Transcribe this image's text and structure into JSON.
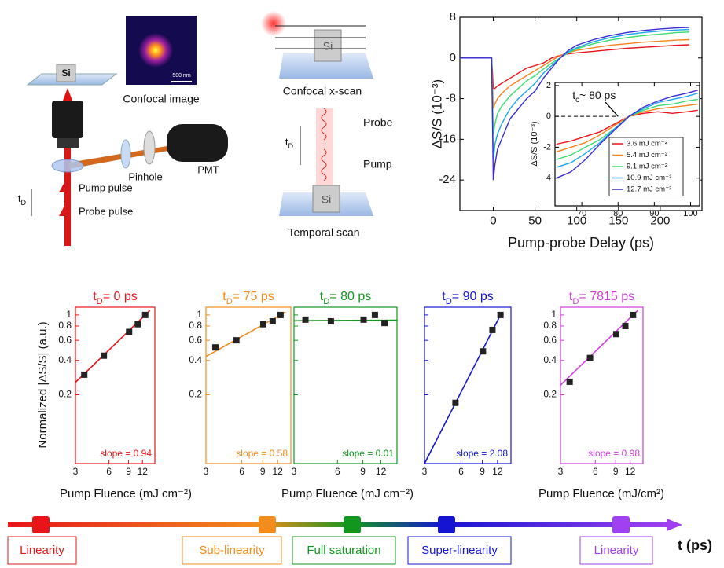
{
  "diagram": {
    "setup": {
      "si": "Si",
      "confocal_image": "Confocal image",
      "scale_bar": "500 nm",
      "pinhole": "Pinhole",
      "pmt": "PMT",
      "pump_pulse": "Pump pulse",
      "probe_pulse": "Probe pulse",
      "delay": {
        "t": "t",
        "sub": "D"
      }
    },
    "scans": {
      "si_top": "Si",
      "x_scan": "Confocal x-scan",
      "probe": "Probe",
      "pump": "Pump",
      "delay": {
        "t": "t",
        "sub": "D"
      },
      "si_bottom": "Si",
      "temporal_scan": "Temporal scan"
    }
  },
  "chart_data": [
    {
      "type": "line",
      "xlabel": "Pump-probe Delay (ps)",
      "ylabel": "ΔS/S (10⁻³)",
      "xlim": [
        -40,
        250
      ],
      "ylim": [
        -30,
        8
      ],
      "xticks": [
        0,
        50,
        100,
        150,
        200
      ],
      "yticks": [
        -24,
        -16,
        -8,
        0,
        8
      ],
      "x": [
        -40,
        -20,
        -2,
        0,
        2,
        5,
        10,
        20,
        30,
        40,
        50,
        60,
        70,
        80,
        90,
        100,
        120,
        140,
        160,
        180,
        200,
        220,
        235
      ],
      "series": [
        {
          "color": "#e8141a",
          "values": [
            0,
            0,
            0,
            -6,
            -6,
            -5.5,
            -5,
            -4,
            -3,
            -2,
            -1.5,
            -1,
            0,
            0.5,
            0.8,
            1,
            1.3,
            1.6,
            1.9,
            2.1,
            2.3,
            2.5,
            2.6
          ]
        },
        {
          "color": "#f5821f",
          "values": [
            0,
            0,
            0,
            -10,
            -9,
            -8,
            -7,
            -5.5,
            -4.5,
            -3.5,
            -2.5,
            -1.5,
            -0.5,
            0.5,
            1,
            1.5,
            2,
            2.5,
            2.8,
            3.1,
            3.3,
            3.5,
            3.6
          ]
        },
        {
          "color": "#3ddc6e",
          "values": [
            0,
            0,
            0,
            -15,
            -13,
            -11,
            -9.5,
            -7.5,
            -6,
            -4.5,
            -3.5,
            -2.2,
            -1,
            0,
            1,
            1.8,
            2.8,
            3.5,
            4,
            4.4,
            4.7,
            5,
            5.1
          ]
        },
        {
          "color": "#1ea7e8",
          "values": [
            0,
            0,
            0,
            -20,
            -17,
            -15,
            -13,
            -10,
            -8,
            -6.5,
            -5,
            -3,
            -1.5,
            0,
            1.2,
            2,
            3.2,
            4,
            4.6,
            5,
            5.3,
            5.5,
            5.6
          ]
        },
        {
          "color": "#3b2bd6",
          "values": [
            0,
            0,
            0,
            -24,
            -21,
            -18,
            -16,
            -12,
            -10,
            -8,
            -6.5,
            -4,
            -2,
            0,
            1.5,
            2.5,
            3.6,
            4.4,
            5,
            5.4,
            5.7,
            5.9,
            6
          ]
        }
      ]
    },
    {
      "type": "line",
      "ylabel": "ΔS/S (10⁻³)",
      "xlim": [
        62.6,
        102.5
      ],
      "ylim": [
        -5.8,
        2.2
      ],
      "xticks": [
        70,
        80,
        90,
        100
      ],
      "yticks": [
        -4,
        -2,
        0,
        2
      ],
      "x": [
        63,
        67,
        71,
        75,
        79,
        83,
        87,
        91,
        95,
        99,
        102
      ],
      "dashed_line": {
        "x": [
          62.6,
          80
        ],
        "y": [
          0,
          0
        ]
      },
      "annotation": {
        "t": "t",
        "sub": "c",
        "rest": "~ 80 ps",
        "x": 80,
        "y": 0
      },
      "series": [
        {
          "name": "3.6 mJ cm⁻²",
          "color": "#e8141a",
          "values": [
            -1.8,
            -1.6,
            -1.3,
            -1,
            -0.5,
            0,
            0.2,
            0.3,
            0.2,
            0.3,
            0.4
          ]
        },
        {
          "name": "5.4 mJ cm⁻²",
          "color": "#f5821f",
          "values": [
            -2.3,
            -2,
            -1.7,
            -1.2,
            -0.6,
            0,
            0.3,
            0.5,
            0.6,
            0.7,
            0.8
          ]
        },
        {
          "name": "9.1 mJ cm⁻²",
          "color": "#3ddc6e",
          "values": [
            -2.8,
            -2.5,
            -2,
            -1.5,
            -0.8,
            0,
            0.4,
            0.7,
            0.8,
            1,
            1.1
          ]
        },
        {
          "name": "10.9 mJ cm⁻²",
          "color": "#1ea7e8",
          "values": [
            -3.3,
            -3,
            -2.4,
            -1.7,
            -0.8,
            0,
            0.5,
            0.9,
            1.1,
            1.3,
            1.5
          ]
        },
        {
          "name": "12.7 mJ cm⁻²",
          "color": "#3b2bd6",
          "values": [
            -4,
            -3.6,
            -2.8,
            -1.8,
            -0.9,
            0,
            0.6,
            1,
            1.3,
            1.5,
            1.7
          ]
        }
      ]
    },
    {
      "type": "scatter",
      "title": {
        "t": "t",
        "sub": "D",
        "rest": "= 0 ps"
      },
      "ylabel": "Normalized |ΔS/S| (a.u.)",
      "xlabel": "Pump Fluence (mJ cm⁻²)",
      "color": "#e8141a",
      "log_x": true,
      "log_y": true,
      "show_ytick_labels": true,
      "xlim": [
        3,
        15.5
      ],
      "ylim": [
        0.05,
        1.17
      ],
      "xticks": [
        3,
        6,
        9,
        12
      ],
      "yticks": [
        0.2,
        0.4,
        0.6,
        0.8,
        1
      ],
      "x": [
        3.6,
        5.4,
        9.1,
        10.9,
        12.7
      ],
      "values": [
        0.3,
        0.44,
        0.71,
        0.83,
        1
      ],
      "fit_x": [
        3,
        14
      ],
      "fit_y": [
        0.257,
        1.096
      ],
      "slope_label": "slope = 0.94"
    },
    {
      "type": "scatter",
      "title": {
        "t": "t",
        "sub": "D",
        "rest": "= 75 ps"
      },
      "color": "#f28c1c",
      "log_x": true,
      "log_y": true,
      "show_ytick_labels": true,
      "xlim": [
        3,
        15.5
      ],
      "ylim": [
        0.05,
        1.17
      ],
      "xticks": [
        3,
        6,
        9,
        12
      ],
      "yticks": [
        0.2,
        0.4,
        0.6,
        0.8,
        1
      ],
      "x": [
        3.6,
        5.4,
        9.1,
        10.9,
        12.7
      ],
      "values": [
        0.52,
        0.6,
        0.83,
        0.88,
        1
      ],
      "fit_x": [
        3,
        14
      ],
      "fit_y": [
        0.433,
        1.058
      ],
      "slope_label": "slope = 0.58"
    },
    {
      "type": "scatter",
      "title": {
        "t": "t",
        "sub": "D",
        "rest": "= 80 ps"
      },
      "xlabel": "Pump Fluence (mJ cm⁻²)",
      "color": "#12961e",
      "log_x": true,
      "log_y": true,
      "show_ytick_labels": false,
      "xlim": [
        3,
        15.5
      ],
      "ylim": [
        0.05,
        1.17
      ],
      "xticks": [
        3,
        6,
        9,
        12
      ],
      "yticks": [
        0.2,
        0.4,
        0.6,
        0.8,
        1
      ],
      "x": [
        3.6,
        5.4,
        9.1,
        10.9,
        12.7
      ],
      "values": [
        0.91,
        0.88,
        0.91,
        1,
        0.85
      ],
      "fit_x": [
        3,
        15.5
      ],
      "fit_y": [
        0.89,
        0.9
      ],
      "slope_label": "slope = 0.01"
    },
    {
      "type": "scatter",
      "title": {
        "t": "t",
        "sub": "D",
        "rest": "= 90 ps"
      },
      "color": "#1414d2",
      "log_x": true,
      "log_y": true,
      "show_ytick_labels": false,
      "xlim": [
        3,
        15.5
      ],
      "ylim": [
        0.05,
        1.17
      ],
      "xticks": [
        3,
        6,
        9,
        12
      ],
      "yticks": [
        0.2,
        0.4,
        0.6,
        0.8,
        1
      ],
      "x": [
        3.6,
        5.4,
        9.1,
        10.9,
        12.7
      ],
      "values": [
        null,
        0.17,
        0.48,
        0.74,
        1
      ],
      "fit_x": [
        3,
        13
      ],
      "fit_y": [
        0.05,
        1.05
      ],
      "slope_label": "slope = 2.08"
    },
    {
      "type": "scatter",
      "title": {
        "t": "t",
        "sub": "D",
        "rest": "= 7815 ps"
      },
      "xlabel": "Pump Fluence (mJ/cm²)",
      "color": "#d23be0",
      "log_x": true,
      "log_y": true,
      "show_ytick_labels": true,
      "xlim": [
        3,
        15.5
      ],
      "ylim": [
        0.05,
        1.17
      ],
      "xticks": [
        3,
        6,
        9,
        12
      ],
      "yticks": [
        0.2,
        0.4,
        0.6,
        0.8,
        1
      ],
      "x": [
        3.6,
        5.4,
        9.1,
        10.9,
        12.7
      ],
      "values": [
        0.26,
        0.42,
        0.68,
        0.8,
        1
      ],
      "fit_x": [
        3,
        14
      ],
      "fit_y": [
        0.243,
        1.1
      ],
      "slope_label": "slope = 0.98"
    }
  ],
  "timeline": {
    "axis_label": "t (ps)",
    "stages": [
      {
        "label": "Linearity",
        "color": "#e8141a"
      },
      {
        "label": "Sub-linearity",
        "color": "#f28c1c"
      },
      {
        "label": "Full saturation",
        "color": "#12961e"
      },
      {
        "label": "Super-linearity",
        "color": "#1414d2"
      },
      {
        "label": "Linearity",
        "color": "#a040f0"
      }
    ]
  }
}
